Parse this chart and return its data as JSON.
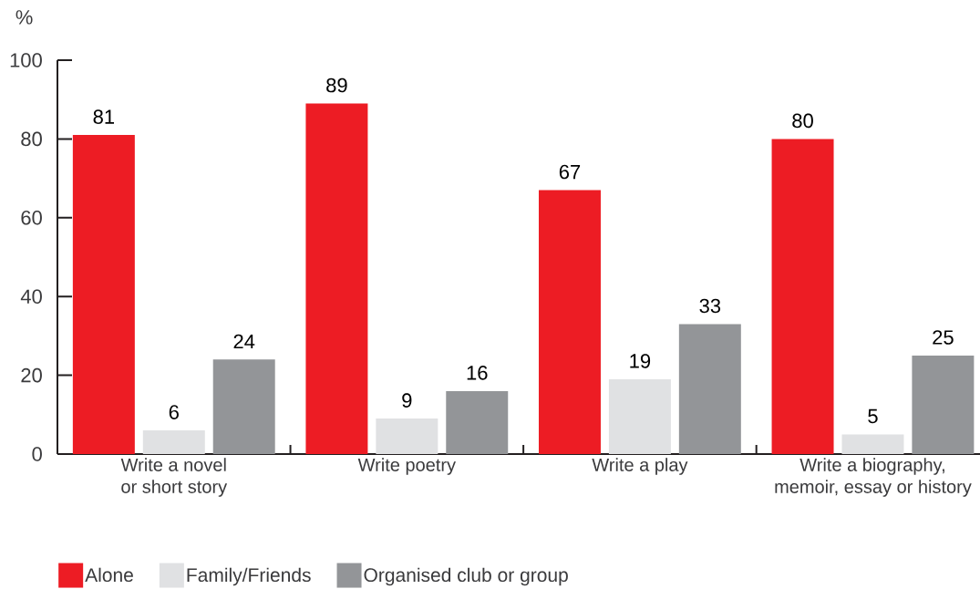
{
  "chart_data": {
    "type": "bar",
    "ylabel": "%",
    "categories": [
      "Write a novel or short story",
      "Write poetry",
      "Write a play",
      "Write a biography, memoir, essay or history"
    ],
    "series": [
      {
        "name": "Alone",
        "color": "#ed1c24",
        "values": [
          81,
          89,
          67,
          80
        ]
      },
      {
        "name": "Family/Friends",
        "color": "#e0e1e3",
        "values": [
          6,
          9,
          19,
          5
        ]
      },
      {
        "name": "Organised club or group",
        "color": "#939598",
        "values": [
          24,
          16,
          33,
          25
        ]
      }
    ],
    "ylim": [
      0,
      100
    ],
    "yticks": [
      0,
      20,
      40,
      60,
      80,
      100
    ],
    "data_labels": true,
    "legend": "bottom"
  }
}
